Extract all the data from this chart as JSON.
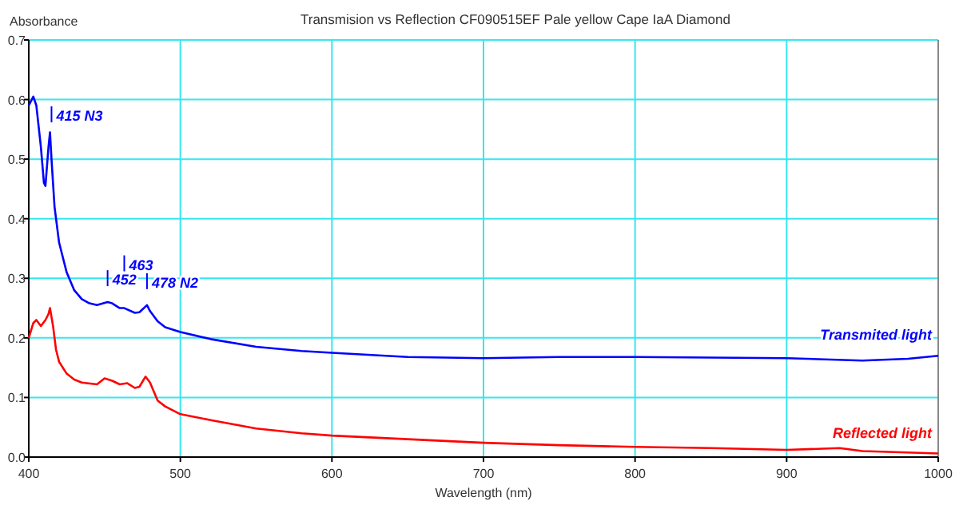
{
  "chart_data": {
    "type": "line",
    "title": "Transmision vs Reflection CF090515EF Pale yellow  Cape IaA Diamond",
    "xlabel": "Wavelength (nm)",
    "ylabel": "Absorbance",
    "xlim": [
      400,
      1000
    ],
    "xticks": [
      400,
      500,
      600,
      700,
      800,
      900,
      1000
    ],
    "ylim": [
      0,
      0.7
    ],
    "yticks": [
      {
        "value": 0,
        "label": "0.0"
      },
      0.1,
      0.2,
      0.3,
      0.4,
      0.5,
      0.6,
      0.7
    ],
    "grid": true,
    "legend": false,
    "marker": "none",
    "line_style": "solid",
    "series": [
      {
        "name": "Transmited light",
        "color": "#0000ff",
        "x": [
          400,
          403,
          405,
          408,
          410,
          411,
          413,
          414,
          415,
          417,
          420,
          425,
          430,
          435,
          440,
          445,
          452,
          455,
          460,
          463,
          470,
          473,
          478,
          480,
          485,
          490,
          500,
          520,
          550,
          580,
          600,
          650,
          700,
          750,
          800,
          850,
          900,
          950,
          980,
          1000
        ],
        "values": [
          0.59,
          0.605,
          0.59,
          0.52,
          0.46,
          0.455,
          0.52,
          0.545,
          0.5,
          0.42,
          0.36,
          0.31,
          0.28,
          0.265,
          0.258,
          0.255,
          0.26,
          0.258,
          0.25,
          0.25,
          0.242,
          0.243,
          0.255,
          0.245,
          0.228,
          0.218,
          0.21,
          0.198,
          0.185,
          0.178,
          0.175,
          0.168,
          0.166,
          0.168,
          0.168,
          0.167,
          0.166,
          0.162,
          0.165,
          0.17
        ]
      },
      {
        "name": "Reflected light",
        "color": "#ff0000",
        "x": [
          400,
          403,
          405,
          408,
          411,
          413,
          414,
          416,
          418,
          420,
          425,
          430,
          435,
          445,
          450,
          455,
          460,
          465,
          470,
          473,
          477,
          480,
          485,
          490,
          500,
          520,
          550,
          580,
          600,
          650,
          700,
          750,
          800,
          850,
          900,
          935,
          950,
          1000
        ],
        "values": [
          0.2,
          0.225,
          0.23,
          0.22,
          0.23,
          0.24,
          0.25,
          0.22,
          0.18,
          0.16,
          0.14,
          0.13,
          0.125,
          0.122,
          0.132,
          0.128,
          0.122,
          0.124,
          0.116,
          0.118,
          0.135,
          0.125,
          0.095,
          0.085,
          0.072,
          0.062,
          0.048,
          0.04,
          0.036,
          0.03,
          0.024,
          0.02,
          0.017,
          0.015,
          0.012,
          0.015,
          0.01,
          0.006
        ]
      }
    ],
    "annotations": [
      {
        "text": "415 N3",
        "x": 415,
        "y": 0.5
      },
      {
        "text": "452",
        "x": 452,
        "y": 0.26
      },
      {
        "text": "463",
        "x": 463,
        "y": 0.25
      },
      {
        "text": "478 N2",
        "x": 478,
        "y": 0.255
      }
    ]
  }
}
